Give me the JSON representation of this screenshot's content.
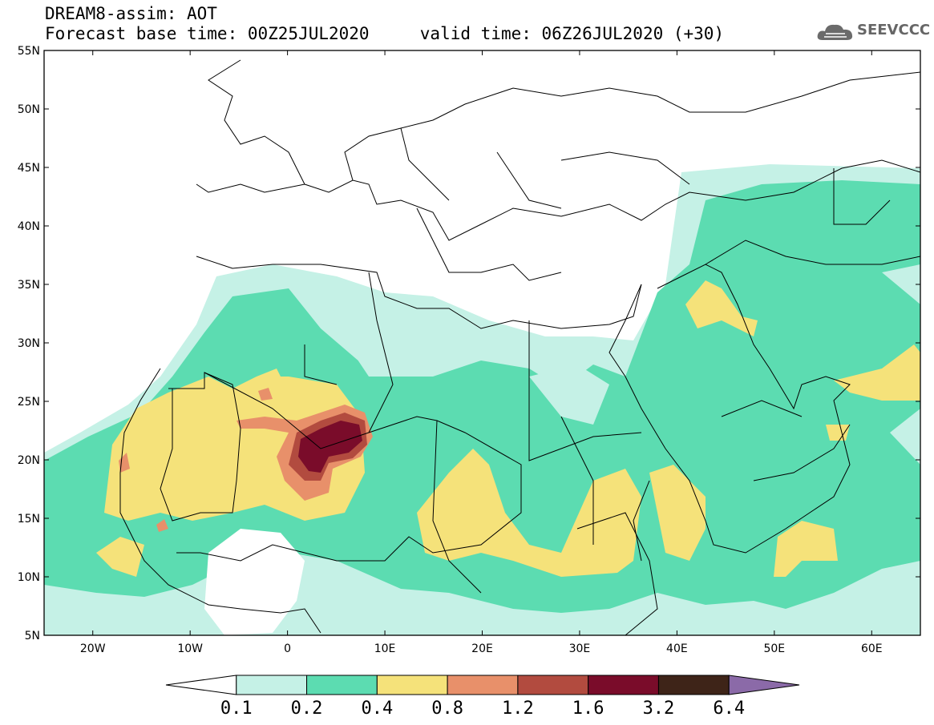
{
  "header": {
    "title_line1": "DREAM8-assim: AOT",
    "title_line2": "Forecast base time: 00Z25JUL2020     valid time: 06Z26JUL2020 (+30)",
    "logo_text": "SEEVCCC",
    "logo_icon": "cloud-logo-icon"
  },
  "map": {
    "variable": "AOT",
    "lon_range": [
      -25,
      65
    ],
    "lat_range": [
      5,
      55
    ],
    "lat_labels": [
      {
        "lat": 55,
        "text": "55N"
      },
      {
        "lat": 50,
        "text": "50N"
      },
      {
        "lat": 45,
        "text": "45N"
      },
      {
        "lat": 40,
        "text": "40N"
      },
      {
        "lat": 35,
        "text": "35N"
      },
      {
        "lat": 30,
        "text": "30N"
      },
      {
        "lat": 25,
        "text": "25N"
      },
      {
        "lat": 20,
        "text": "20N"
      },
      {
        "lat": 15,
        "text": "15N"
      },
      {
        "lat": 10,
        "text": "10N"
      },
      {
        "lat": 5,
        "text": "5N"
      }
    ],
    "lon_labels": [
      {
        "lon": -20,
        "text": "20W"
      },
      {
        "lon": -10,
        "text": "10W"
      },
      {
        "lon": 0,
        "text": "0"
      },
      {
        "lon": 10,
        "text": "10E"
      },
      {
        "lon": 20,
        "text": "20E"
      },
      {
        "lon": 30,
        "text": "30E"
      },
      {
        "lon": 40,
        "text": "40E"
      },
      {
        "lon": 50,
        "text": "50E"
      },
      {
        "lon": 60,
        "text": "60E"
      }
    ]
  },
  "colorbar": {
    "colors": [
      "#ffffff",
      "#c5f1e6",
      "#5cdcb1",
      "#f5e27a",
      "#e8906a",
      "#b24b3f",
      "#7a0c2a",
      "#3e2418",
      "#8b6aa8"
    ],
    "labels": [
      "0.1",
      "0.2",
      "0.4",
      "0.8",
      "1.2",
      "1.6",
      "3.2",
      "6.4"
    ]
  }
}
